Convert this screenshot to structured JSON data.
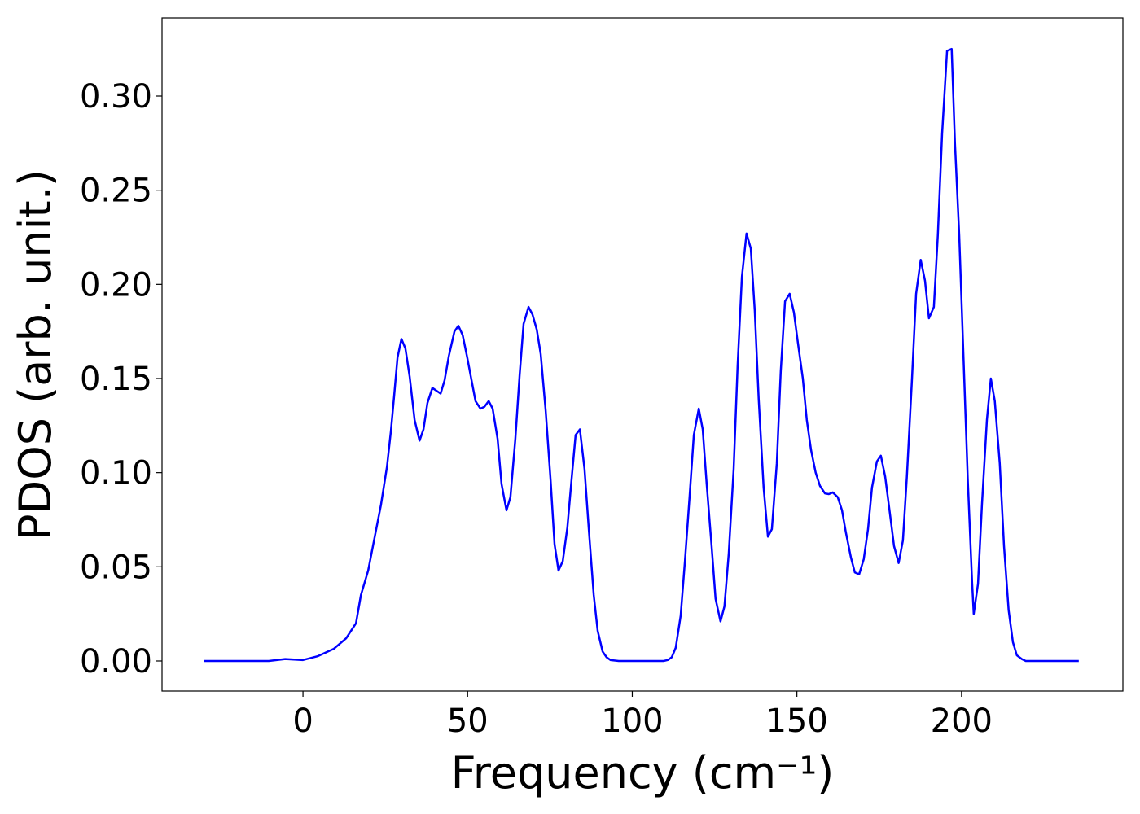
{
  "chart_data": {
    "type": "line",
    "xlabel": "Frequency (cm⁻¹)",
    "ylabel": "PDOS (arb. unit.)",
    "xlim": [
      -42.8,
      249
    ],
    "ylim": [
      -0.016,
      0.3415
    ],
    "xticks": [
      0,
      50,
      100,
      150,
      200
    ],
    "yticks": [
      {
        "value": 0,
        "label": "0.00"
      },
      {
        "value": 0.05,
        "label": "0.05"
      },
      {
        "value": 0.1,
        "label": "0.10"
      },
      {
        "value": 0.15,
        "label": "0.15"
      },
      {
        "value": 0.2,
        "label": "0.20"
      },
      {
        "value": 0.25,
        "label": "0.25"
      },
      {
        "value": 0.3,
        "label": "0.30"
      }
    ],
    "series": [
      {
        "color": "#0000ff",
        "x": [
          -30,
          -10.4,
          -5.4,
          0,
          4.4,
          9.4,
          13.1,
          16.1,
          17.6,
          19.8,
          21.8,
          23.7,
          25.5,
          26.7,
          27.7,
          28.7,
          29.9,
          31.1,
          32.4,
          33.9,
          35.4,
          36.6,
          37.8,
          39.3,
          41.8,
          43.0,
          44.3,
          46.0,
          47.2,
          48.5,
          49.9,
          51.2,
          52.4,
          53.9,
          55.1,
          56.4,
          57.6,
          59.1,
          60.3,
          61.8,
          63.0,
          64.5,
          65.8,
          67.0,
          68.5,
          69.7,
          71.0,
          72.2,
          73.7,
          75.2,
          76.4,
          77.6,
          78.9,
          80.3,
          81.6,
          82.8,
          84.1,
          85.5,
          86.8,
          88.3,
          89.5,
          91.0,
          92.2,
          93.4,
          95.9,
          109.5,
          110.8,
          112.0,
          113.2,
          114.7,
          116.0,
          117.4,
          118.7,
          120.2,
          121.4,
          122.6,
          124.1,
          125.3,
          126.8,
          128.0,
          129.3,
          130.8,
          132.0,
          133.3,
          134.7,
          136.0,
          137.2,
          138.4,
          139.9,
          141.2,
          142.4,
          143.9,
          145.1,
          146.4,
          147.8,
          149.1,
          150.3,
          151.8,
          153.0,
          154.3,
          155.7,
          157.0,
          158.5,
          159.7,
          160.9,
          162.4,
          163.7,
          164.9,
          166.4,
          167.6,
          168.9,
          170.3,
          171.6,
          172.8,
          174.3,
          175.5,
          176.8,
          178.2,
          179.5,
          180.9,
          182.2,
          183.4,
          184.9,
          186.2,
          187.6,
          188.9,
          190.1,
          191.6,
          192.8,
          194.1,
          195.6,
          197.0,
          198.0,
          199.3,
          200.7,
          201.9,
          203.2,
          203.7,
          205.0,
          206.2,
          207.7,
          208.9,
          210.1,
          211.6,
          212.9,
          214.3,
          215.6,
          216.8,
          218.3,
          219.5,
          235.6
        ],
        "values": [
          0,
          0,
          0.001,
          0.0005,
          0.0025,
          0.0065,
          0.012,
          0.02,
          0.035,
          0.048,
          0.066,
          0.083,
          0.103,
          0.122,
          0.141,
          0.161,
          0.171,
          0.166,
          0.151,
          0.128,
          0.117,
          0.123,
          0.137,
          0.145,
          0.142,
          0.149,
          0.162,
          0.175,
          0.178,
          0.173,
          0.161,
          0.149,
          0.138,
          0.134,
          0.135,
          0.138,
          0.134,
          0.118,
          0.094,
          0.08,
          0.087,
          0.118,
          0.152,
          0.179,
          0.188,
          0.184,
          0.176,
          0.163,
          0.133,
          0.096,
          0.062,
          0.048,
          0.053,
          0.071,
          0.097,
          0.12,
          0.123,
          0.102,
          0.07,
          0.035,
          0.016,
          0.005,
          0.002,
          0.0005,
          0,
          0,
          0.0005,
          0.002,
          0.007,
          0.024,
          0.053,
          0.087,
          0.12,
          0.134,
          0.123,
          0.094,
          0.061,
          0.033,
          0.021,
          0.029,
          0.057,
          0.102,
          0.157,
          0.204,
          0.227,
          0.219,
          0.186,
          0.139,
          0.092,
          0.066,
          0.07,
          0.105,
          0.154,
          0.191,
          0.195,
          0.185,
          0.169,
          0.15,
          0.128,
          0.112,
          0.1,
          0.093,
          0.089,
          0.0886,
          0.0895,
          0.087,
          0.08,
          0.068,
          0.055,
          0.047,
          0.046,
          0.054,
          0.07,
          0.092,
          0.106,
          0.109,
          0.098,
          0.079,
          0.061,
          0.052,
          0.064,
          0.098,
          0.148,
          0.195,
          0.213,
          0.202,
          0.182,
          0.188,
          0.226,
          0.28,
          0.324,
          0.325,
          0.275,
          0.226,
          0.156,
          0.096,
          0.042,
          0.025,
          0.041,
          0.083,
          0.128,
          0.15,
          0.138,
          0.105,
          0.061,
          0.027,
          0.01,
          0.003,
          0.001,
          0,
          0
        ]
      }
    ]
  }
}
